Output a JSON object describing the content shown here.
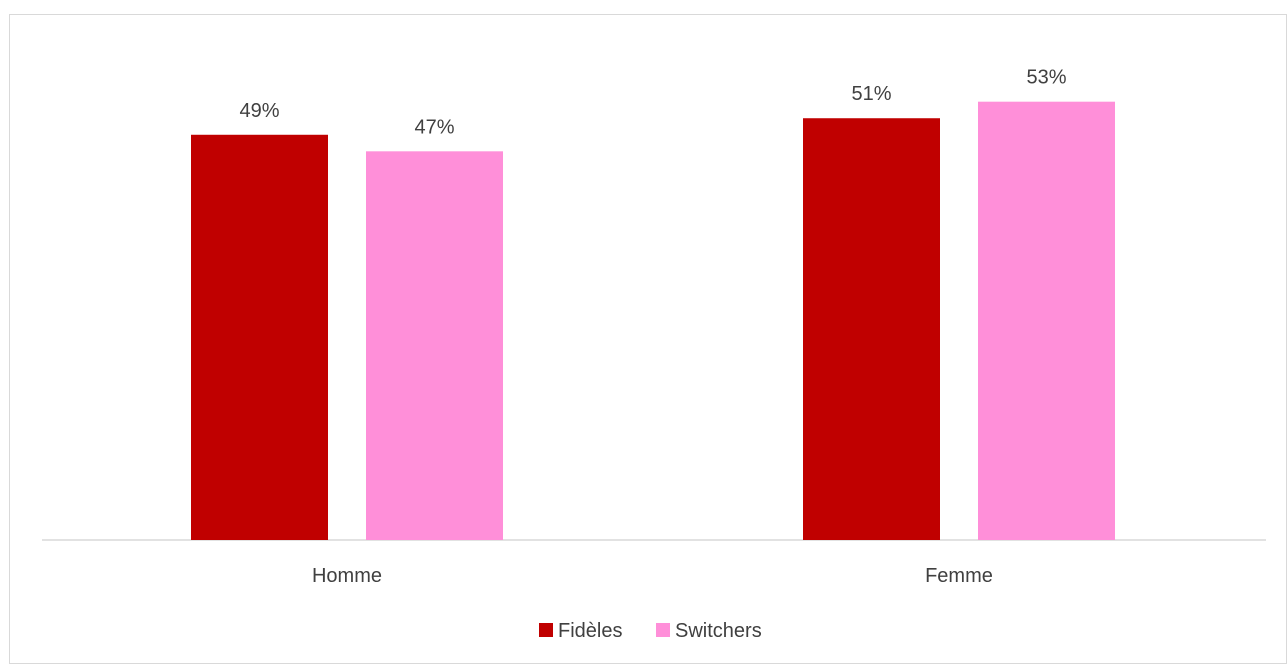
{
  "chart_data": {
    "type": "bar",
    "title": "",
    "xlabel": "",
    "ylabel": "",
    "categories": [
      "Homme",
      "Femme"
    ],
    "series": [
      {
        "name": "Fidèles",
        "color": "#c00000",
        "values": [
          49,
          51
        ],
        "labels": [
          "49%",
          "51%"
        ]
      },
      {
        "name": "Switchers",
        "color": "#ff8fd9",
        "values": [
          47,
          53
        ],
        "labels": [
          "47%",
          "53%"
        ]
      }
    ],
    "ylim": [
      0,
      60
    ],
    "grid": false,
    "legend_position": "bottom",
    "axis_color": "#d9d9d9",
    "label_color": "#404040"
  }
}
